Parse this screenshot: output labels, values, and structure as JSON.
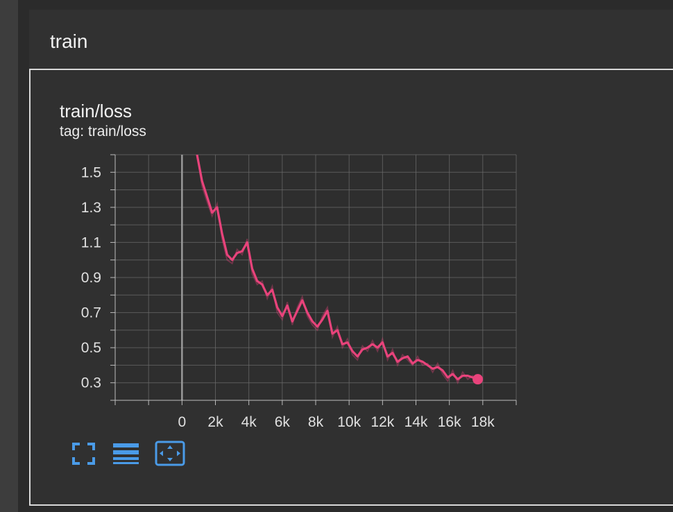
{
  "group": {
    "title": "train"
  },
  "card": {
    "title": "train/loss",
    "tag": "tag: train/loss"
  },
  "icons": [
    "fullscreen-icon",
    "data-table-icon",
    "fit-domain-icon"
  ],
  "colors": {
    "series": "#e8437b",
    "grid": "#6a6a6a",
    "text": "#e0e0e0",
    "accent": "#4a9be8"
  },
  "chart_data": {
    "type": "line",
    "title": "train/loss",
    "xlabel": "",
    "ylabel": "",
    "xlim": [
      -4000,
      20000
    ],
    "ylim": [
      0.2,
      1.6
    ],
    "x_ticks": [
      0,
      2000,
      4000,
      6000,
      8000,
      10000,
      12000,
      14000,
      16000,
      18000
    ],
    "x_tick_labels": [
      "0",
      "2k",
      "4k",
      "6k",
      "8k",
      "10k",
      "12k",
      "14k",
      "16k",
      "18k"
    ],
    "y_ticks": [
      0.3,
      0.5,
      0.7,
      0.9,
      1.1,
      1.3,
      1.5
    ],
    "y_tick_labels": [
      "0.3",
      "0.5",
      "0.7",
      "0.9",
      "1.1",
      "1.3",
      "1.5"
    ],
    "grid": true,
    "series": [
      {
        "x": [
          900,
          1200,
          1500,
          1800,
          2100,
          2400,
          2700,
          3000,
          3300,
          3600,
          3900,
          4200,
          4500,
          4800,
          5100,
          5400,
          5700,
          6000,
          6300,
          6600,
          6900,
          7200,
          7500,
          7800,
          8100,
          8400,
          8700,
          9000,
          9300,
          9600,
          9900,
          10200,
          10500,
          10800,
          11100,
          11400,
          11700,
          12000,
          12300,
          12600,
          12900,
          13200,
          13500,
          13800,
          14100,
          14400,
          14700,
          15000,
          15300,
          15600,
          15900,
          16200,
          16500,
          16800,
          17100,
          17400,
          17700
        ],
        "y": [
          1.6,
          1.45,
          1.36,
          1.27,
          1.3,
          1.15,
          1.03,
          1.0,
          1.04,
          1.05,
          1.1,
          0.95,
          0.88,
          0.86,
          0.8,
          0.83,
          0.73,
          0.68,
          0.74,
          0.65,
          0.71,
          0.77,
          0.7,
          0.65,
          0.62,
          0.66,
          0.71,
          0.58,
          0.6,
          0.52,
          0.53,
          0.48,
          0.45,
          0.49,
          0.5,
          0.52,
          0.5,
          0.53,
          0.45,
          0.47,
          0.42,
          0.44,
          0.45,
          0.41,
          0.43,
          0.42,
          0.4,
          0.38,
          0.39,
          0.37,
          0.33,
          0.35,
          0.32,
          0.34,
          0.34,
          0.33,
          0.32
        ],
        "raw": [
          1.6,
          1.42,
          1.33,
          1.25,
          1.32,
          1.12,
          1.0,
          0.98,
          1.06,
          1.03,
          1.12,
          0.92,
          0.86,
          0.88,
          0.78,
          0.85,
          0.7,
          0.66,
          0.76,
          0.63,
          0.73,
          0.79,
          0.68,
          0.63,
          0.6,
          0.68,
          0.73,
          0.56,
          0.62,
          0.5,
          0.55,
          0.46,
          0.43,
          0.51,
          0.48,
          0.54,
          0.48,
          0.55,
          0.43,
          0.49,
          0.4,
          0.46,
          0.43,
          0.4,
          0.45,
          0.4,
          0.41,
          0.36,
          0.41,
          0.35,
          0.31,
          0.37,
          0.3,
          0.36,
          0.32,
          0.34,
          0.31
        ]
      }
    ],
    "last_point": {
      "x": 17700,
      "y": 0.32
    }
  }
}
